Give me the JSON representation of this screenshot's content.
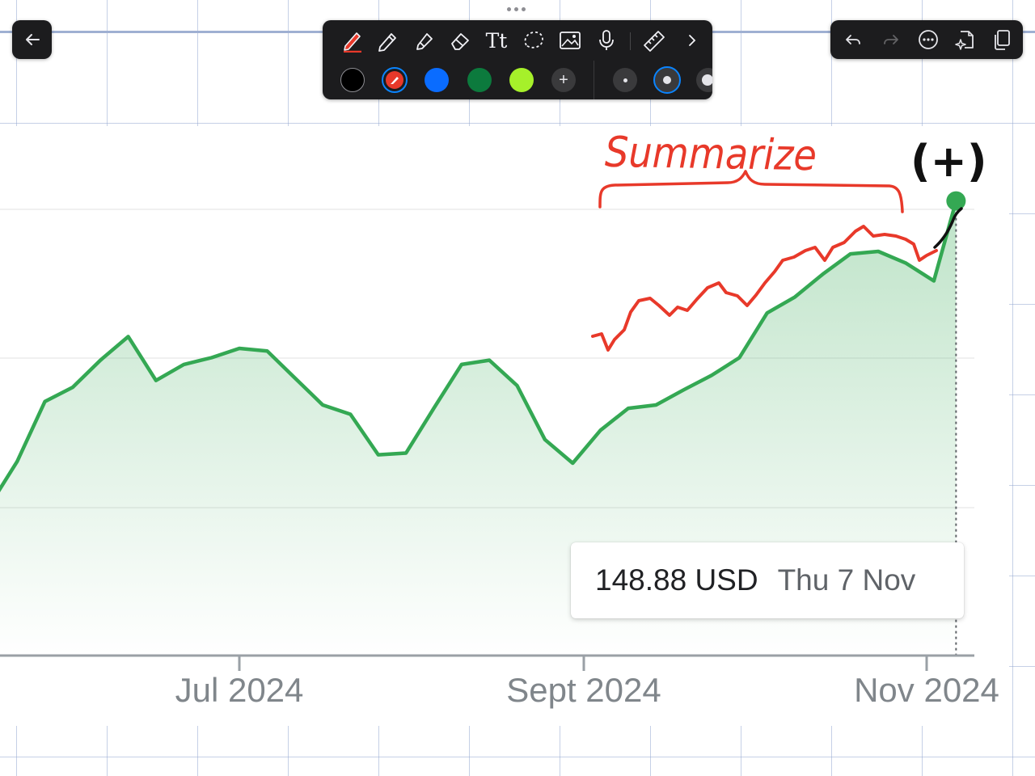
{
  "annotations": {
    "summarize_text": "Summarize",
    "plus_text": "(+)",
    "ink_color": "#e8392a",
    "black_ink": "#111111"
  },
  "toolbar": {
    "tools": [
      "pen-icon",
      "pencil-icon",
      "marker-icon",
      "eraser-icon",
      "text-icon",
      "lasso-icon",
      "image-icon",
      "microphone-icon",
      "ruler-icon",
      "chevron-right-icon"
    ],
    "text_tool_label": "Tt",
    "colors": [
      "#000000",
      "#e8392a",
      "#0a6cff",
      "#0c7a3d",
      "#a6f02a"
    ],
    "selected_color": "#e8392a",
    "add_color_label": "+",
    "stroke_sizes": [
      "small",
      "medium",
      "large"
    ],
    "selected_stroke": "medium"
  },
  "right_toolbar": {
    "buttons": [
      "undo-icon",
      "redo-icon",
      "more-icon",
      "ai-page-icon",
      "pages-icon"
    ]
  },
  "chart": {
    "tooltip_value": "148.88 USD",
    "tooltip_date": "Thu 7 Nov",
    "line_color": "#34a853"
  },
  "chart_data": {
    "type": "area",
    "x_tick_labels": [
      "Jul 2024",
      "Sept 2024",
      "Nov 2024"
    ],
    "x": [
      "2024-05-18",
      "2024-05-22",
      "2024-05-27",
      "2024-06-01",
      "2024-06-06",
      "2024-06-11",
      "2024-06-16",
      "2024-06-21",
      "2024-06-26",
      "2024-07-01",
      "2024-07-06",
      "2024-07-11",
      "2024-07-16",
      "2024-07-21",
      "2024-07-26",
      "2024-07-31",
      "2024-08-05",
      "2024-08-10",
      "2024-08-15",
      "2024-08-20",
      "2024-08-25",
      "2024-08-30",
      "2024-09-04",
      "2024-09-09",
      "2024-09-14",
      "2024-09-19",
      "2024-09-24",
      "2024-09-29",
      "2024-10-04",
      "2024-10-09",
      "2024-10-14",
      "2024-10-19",
      "2024-10-24",
      "2024-10-29",
      "2024-11-03",
      "2024-11-07"
    ],
    "values": [
      113.8,
      118.0,
      125.1,
      126.8,
      130.0,
      132.8,
      127.6,
      129.5,
      130.3,
      131.4,
      131.1,
      127.9,
      124.7,
      123.6,
      118.8,
      119.0,
      124.3,
      129.5,
      130.0,
      127.0,
      120.6,
      117.8,
      121.7,
      124.3,
      124.7,
      126.5,
      128.2,
      130.3,
      135.6,
      137.5,
      140.2,
      142.6,
      142.9,
      141.5,
      139.4,
      148.88
    ],
    "series": [
      {
        "values_ref": "values"
      }
    ],
    "ylim": [
      95,
      152
    ],
    "last_point": {
      "date": "2024-11-07",
      "value": 148.88
    }
  }
}
